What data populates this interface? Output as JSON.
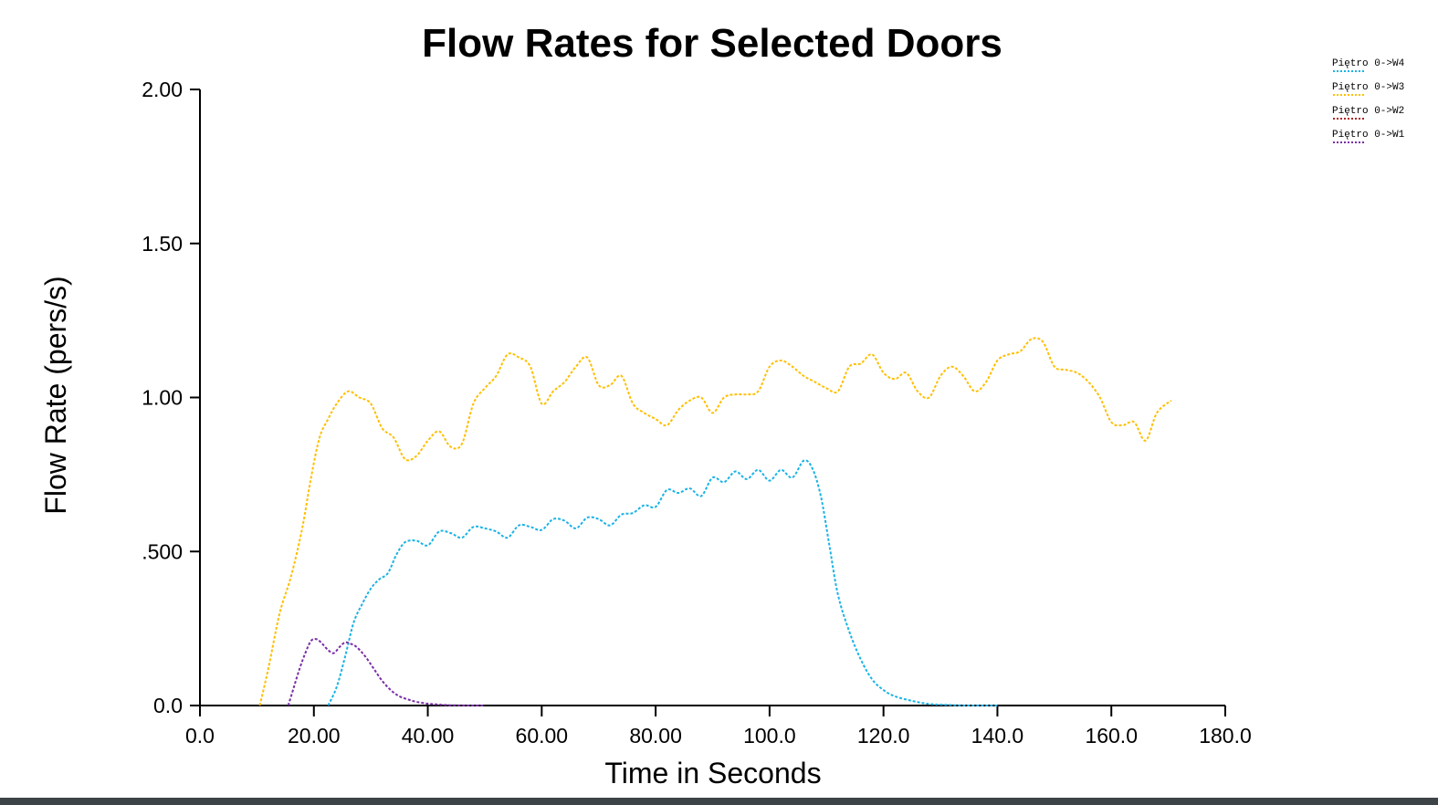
{
  "chart_data": {
    "type": "line",
    "title": "Flow Rates for Selected Doors",
    "xlabel": "Time in Seconds",
    "ylabel": "Flow Rate (pers/s)",
    "xlim": [
      0,
      180
    ],
    "ylim": [
      0,
      2
    ],
    "x_ticks": [
      0,
      20,
      40,
      60,
      80,
      100,
      120,
      140,
      160,
      180
    ],
    "x_tick_labels": [
      "0.0",
      "20.00",
      "40.00",
      "60.00",
      "80.00",
      "100.0",
      "120.0",
      "140.0",
      "160.0",
      "180.0"
    ],
    "y_ticks": [
      0,
      0.5,
      1.0,
      1.5,
      2.0
    ],
    "y_tick_labels": [
      "0.0",
      ".500",
      "1.00",
      "1.50",
      "2.00"
    ],
    "grid": false,
    "legend_position": "top-right",
    "line_style": "dotted",
    "series": [
      {
        "name": "Piętro 0->W4",
        "color": "#1ab3e6",
        "x": [
          22.5,
          24,
          25.5,
          27,
          28.5,
          30,
          31.5,
          33,
          34.5,
          36,
          38,
          40,
          42,
          44,
          46,
          48,
          50,
          52,
          54,
          56,
          58,
          60,
          62,
          64,
          66,
          68,
          70,
          72,
          74,
          76,
          78,
          80,
          82,
          84,
          86,
          88,
          90,
          92,
          94,
          96,
          98,
          100,
          102,
          104,
          106,
          107.5,
          109,
          110.5,
          112,
          114,
          116,
          118,
          120,
          122,
          125,
          128,
          131,
          135,
          140
        ],
        "values": [
          0,
          0.06,
          0.16,
          0.27,
          0.33,
          0.38,
          0.41,
          0.43,
          0.49,
          0.53,
          0.535,
          0.52,
          0.565,
          0.56,
          0.545,
          0.58,
          0.575,
          0.565,
          0.545,
          0.585,
          0.58,
          0.57,
          0.605,
          0.6,
          0.575,
          0.61,
          0.605,
          0.585,
          0.62,
          0.625,
          0.65,
          0.645,
          0.7,
          0.69,
          0.705,
          0.68,
          0.74,
          0.725,
          0.76,
          0.735,
          0.765,
          0.73,
          0.765,
          0.74,
          0.795,
          0.77,
          0.68,
          0.52,
          0.36,
          0.24,
          0.15,
          0.085,
          0.05,
          0.03,
          0.015,
          0.005,
          0.002,
          0,
          0
        ]
      },
      {
        "name": "Piętro 0->W3",
        "color": "#ffbf00",
        "x": [
          10.5,
          12,
          14,
          16,
          18,
          19.5,
          21,
          22.5,
          24,
          26,
          28,
          30,
          32,
          34,
          36,
          38,
          40,
          42,
          44,
          46,
          48,
          50,
          52,
          54,
          56,
          58,
          60,
          62,
          64,
          66,
          68,
          70,
          72,
          74,
          76,
          78,
          80,
          82,
          84,
          86,
          88,
          90,
          92,
          94,
          96,
          98,
          100,
          102,
          104,
          106,
          108,
          110,
          112,
          114,
          116,
          118,
          120,
          122,
          124,
          126,
          128,
          130,
          132,
          134,
          136,
          138,
          140,
          142,
          144,
          146,
          148,
          150,
          152,
          154,
          156,
          158,
          160,
          162,
          164,
          166,
          168,
          170.5
        ],
        "values": [
          0,
          0.12,
          0.3,
          0.42,
          0.58,
          0.74,
          0.87,
          0.93,
          0.98,
          1.02,
          1.0,
          0.98,
          0.9,
          0.87,
          0.8,
          0.81,
          0.86,
          0.89,
          0.84,
          0.85,
          0.98,
          1.03,
          1.07,
          1.14,
          1.13,
          1.1,
          0.98,
          1.02,
          1.05,
          1.1,
          1.13,
          1.04,
          1.04,
          1.07,
          0.98,
          0.95,
          0.93,
          0.91,
          0.96,
          0.99,
          1.0,
          0.95,
          1.0,
          1.01,
          1.01,
          1.02,
          1.1,
          1.12,
          1.1,
          1.07,
          1.05,
          1.03,
          1.02,
          1.1,
          1.11,
          1.14,
          1.08,
          1.06,
          1.08,
          1.02,
          1.0,
          1.07,
          1.1,
          1.07,
          1.02,
          1.05,
          1.12,
          1.14,
          1.15,
          1.19,
          1.18,
          1.1,
          1.09,
          1.08,
          1.05,
          1.0,
          0.92,
          0.91,
          0.92,
          0.86,
          0.95,
          0.99
        ]
      },
      {
        "name": "Piętro 0->W2",
        "color": "#b22222",
        "x": [],
        "values": []
      },
      {
        "name": "Piętro 0->W1",
        "color": "#7a2ea8",
        "x": [
          15.5,
          16.5,
          17.5,
          18.5,
          19.5,
          20.5,
          21.5,
          22.5,
          23.5,
          24.5,
          25.5,
          26.5,
          27.5,
          29,
          30.5,
          32,
          33.5,
          35,
          36.5,
          38,
          40,
          42,
          44,
          47,
          50
        ],
        "values": [
          0,
          0.06,
          0.12,
          0.17,
          0.21,
          0.215,
          0.2,
          0.18,
          0.17,
          0.19,
          0.205,
          0.2,
          0.19,
          0.16,
          0.12,
          0.08,
          0.05,
          0.03,
          0.02,
          0.012,
          0.006,
          0.003,
          0.001,
          0,
          0
        ]
      }
    ]
  }
}
